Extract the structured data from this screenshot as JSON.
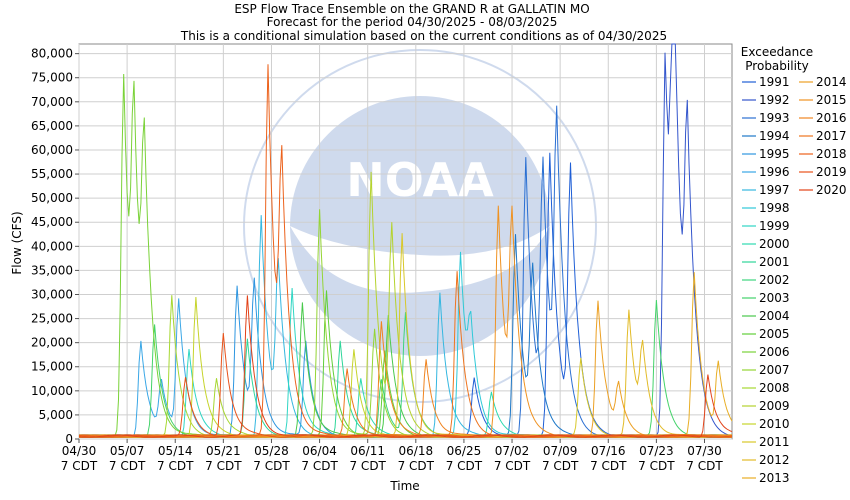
{
  "chart_data": {
    "type": "line",
    "title": "ESP Flow Trace Ensemble on the GRAND R at GALLATIN MO",
    "subtitle_1": "Forecast for the period 04/30/2025 - 08/03/2025",
    "subtitle_2": "This is a conditional simulation based on the current conditions as of 04/30/2025",
    "xlabel": "Time",
    "ylabel": "Flow (CFS)",
    "ylim": [
      0,
      82000
    ],
    "xlim_days": [
      0,
      95
    ],
    "yticks": [
      0,
      5000,
      10000,
      15000,
      20000,
      25000,
      30000,
      35000,
      40000,
      45000,
      50000,
      55000,
      60000,
      65000,
      70000,
      75000,
      80000
    ],
    "ytick_labels": [
      "0",
      "5,000",
      "10,000",
      "15,000",
      "20,000",
      "25,000",
      "30,000",
      "35,000",
      "40,000",
      "45,000",
      "50,000",
      "55,000",
      "60,000",
      "65,000",
      "70,000",
      "75,000",
      "80,000"
    ],
    "xticks": [
      {
        "day": 0,
        "line1": "04/30",
        "line2": "7 CDT"
      },
      {
        "day": 7,
        "line1": "05/07",
        "line2": "7 CDT"
      },
      {
        "day": 14,
        "line1": "05/14",
        "line2": "7 CDT"
      },
      {
        "day": 21,
        "line1": "05/21",
        "line2": "7 CDT"
      },
      {
        "day": 28,
        "line1": "05/28",
        "line2": "7 CDT"
      },
      {
        "day": 35,
        "line1": "06/04",
        "line2": "7 CDT"
      },
      {
        "day": 42,
        "line1": "06/11",
        "line2": "7 CDT"
      },
      {
        "day": 49,
        "line1": "06/18",
        "line2": "7 CDT"
      },
      {
        "day": 56,
        "line1": "06/25",
        "line2": "7 CDT"
      },
      {
        "day": 63,
        "line1": "07/02",
        "line2": "7 CDT"
      },
      {
        "day": 70,
        "line1": "07/09",
        "line2": "7 CDT"
      },
      {
        "day": 77,
        "line1": "07/16",
        "line2": "7 CDT"
      },
      {
        "day": 84,
        "line1": "07/23",
        "line2": "7 CDT"
      },
      {
        "day": 91,
        "line1": "07/30",
        "line2": "7 CDT"
      }
    ],
    "grid": true,
    "legend_position": "right",
    "legend_title": "Exceedance Probability",
    "legend_title_line1": "Exceedance",
    "legend_title_line2": "Probability",
    "watermark": "NOAA NATIONAL OCEANIC AND ATMOSPHERIC ADMINISTRATION U.S. DEPARTMENT OF COMMERCE",
    "series": [
      {
        "name": "1991",
        "color": "#1f5fd6",
        "peaks": [
          [
            57.5,
            12000
          ],
          [
            68.5,
            59000
          ],
          [
            71.5,
            52000
          ]
        ]
      },
      {
        "name": "1992",
        "color": "#3355cc",
        "peaks": [
          [
            85.3,
            80500
          ],
          [
            86.5,
            75000
          ],
          [
            88.5,
            50000
          ]
        ]
      },
      {
        "name": "1993",
        "color": "#2a6fd2",
        "peaks": [
          [
            65,
            58000
          ],
          [
            67.5,
            51000
          ],
          [
            69.5,
            57500
          ]
        ]
      },
      {
        "name": "1994",
        "color": "#1e78c8",
        "peaks": [
          [
            63.5,
            42000
          ],
          [
            66,
            31000
          ]
        ]
      },
      {
        "name": "1995",
        "color": "#2e96e0",
        "peaks": [
          [
            23,
            31000
          ],
          [
            25.5,
            29000
          ],
          [
            33,
            19500
          ]
        ]
      },
      {
        "name": "1996",
        "color": "#3aa7e6",
        "peaks": [
          [
            9,
            20000
          ],
          [
            12,
            10000
          ],
          [
            14.5,
            27000
          ]
        ]
      },
      {
        "name": "1997",
        "color": "#35b7e0",
        "peaks": [
          [
            26.5,
            46000
          ],
          [
            29,
            31000
          ],
          [
            52.5,
            30000
          ]
        ]
      },
      {
        "name": "1998",
        "color": "#2ec9d8",
        "peaks": [
          [
            55.5,
            38000
          ],
          [
            57,
            15000
          ]
        ]
      },
      {
        "name": "1999",
        "color": "#30d6c4",
        "peaks": [
          [
            31,
            31000
          ],
          [
            16,
            18000
          ]
        ]
      },
      {
        "name": "2000",
        "color": "#2edab0",
        "peaks": [
          [
            41,
            12000
          ],
          [
            60,
            9000
          ]
        ]
      },
      {
        "name": "2001",
        "color": "#2fd69a",
        "peaks": [
          [
            24.5,
            20000
          ],
          [
            38,
            20000
          ]
        ]
      },
      {
        "name": "2002",
        "color": "#3ed47e",
        "peaks": [
          [
            47.5,
            25000
          ],
          [
            44,
            12000
          ]
        ]
      },
      {
        "name": "2003",
        "color": "#44d36a",
        "peaks": [
          [
            11,
            23000
          ],
          [
            84,
            28000
          ]
        ]
      },
      {
        "name": "2004",
        "color": "#49c94c",
        "peaks": [
          [
            45,
            25000
          ],
          [
            32.5,
            28000
          ]
        ]
      },
      {
        "name": "2005",
        "color": "#62cf3a",
        "peaks": [
          [
            36,
            30000
          ],
          [
            44.5,
            17500
          ]
        ]
      },
      {
        "name": "2006",
        "color": "#7ad238",
        "peaks": [
          [
            6.5,
            75000
          ],
          [
            8,
            52000
          ],
          [
            9.5,
            45000
          ]
        ]
      },
      {
        "name": "2007",
        "color": "#94d534",
        "peaks": [
          [
            35,
            47000
          ],
          [
            43,
            22000
          ]
        ]
      },
      {
        "name": "2008",
        "color": "#a7d832",
        "peaks": [
          [
            13.5,
            29000
          ],
          [
            20,
            12000
          ]
        ]
      },
      {
        "name": "2009",
        "color": "#b5d32e",
        "peaks": [
          [
            42.5,
            55000
          ],
          [
            45.5,
            40000
          ]
        ]
      },
      {
        "name": "2010",
        "color": "#c6d42c",
        "peaks": [
          [
            17,
            29000
          ],
          [
            40,
            18000
          ]
        ]
      },
      {
        "name": "2011",
        "color": "#d8c82a",
        "peaks": [
          [
            47,
            42000
          ],
          [
            73,
            16000
          ]
        ]
      },
      {
        "name": "2012",
        "color": "#e2bb28",
        "peaks": [
          [
            80,
            26000
          ],
          [
            82,
            15000
          ]
        ]
      },
      {
        "name": "2013",
        "color": "#e8ae26",
        "peaks": [
          [
            89.5,
            34000
          ],
          [
            93,
            14000
          ]
        ]
      },
      {
        "name": "2014",
        "color": "#eca024",
        "peaks": [
          [
            75.5,
            28000
          ],
          [
            78.5,
            9000
          ]
        ]
      },
      {
        "name": "2015",
        "color": "#ef9222",
        "peaks": [
          [
            61,
            48000
          ],
          [
            63,
            39000
          ]
        ]
      },
      {
        "name": "2016",
        "color": "#f08420",
        "peaks": [
          [
            50.5,
            16000
          ],
          [
            44,
            24000
          ]
        ]
      },
      {
        "name": "2017",
        "color": "#ee741e",
        "peaks": [
          [
            55,
            34000
          ],
          [
            39,
            14000
          ]
        ]
      },
      {
        "name": "2018",
        "color": "#ec621c",
        "peaks": [
          [
            27.5,
            77000
          ],
          [
            29.5,
            46000
          ]
        ]
      },
      {
        "name": "2019",
        "color": "#e8521a",
        "peaks": [
          [
            21,
            21500
          ],
          [
            15.5,
            12000
          ]
        ]
      },
      {
        "name": "2020",
        "color": "#e24218",
        "peaks": [
          [
            24.5,
            29000
          ],
          [
            91.5,
            13000
          ]
        ]
      }
    ]
  }
}
